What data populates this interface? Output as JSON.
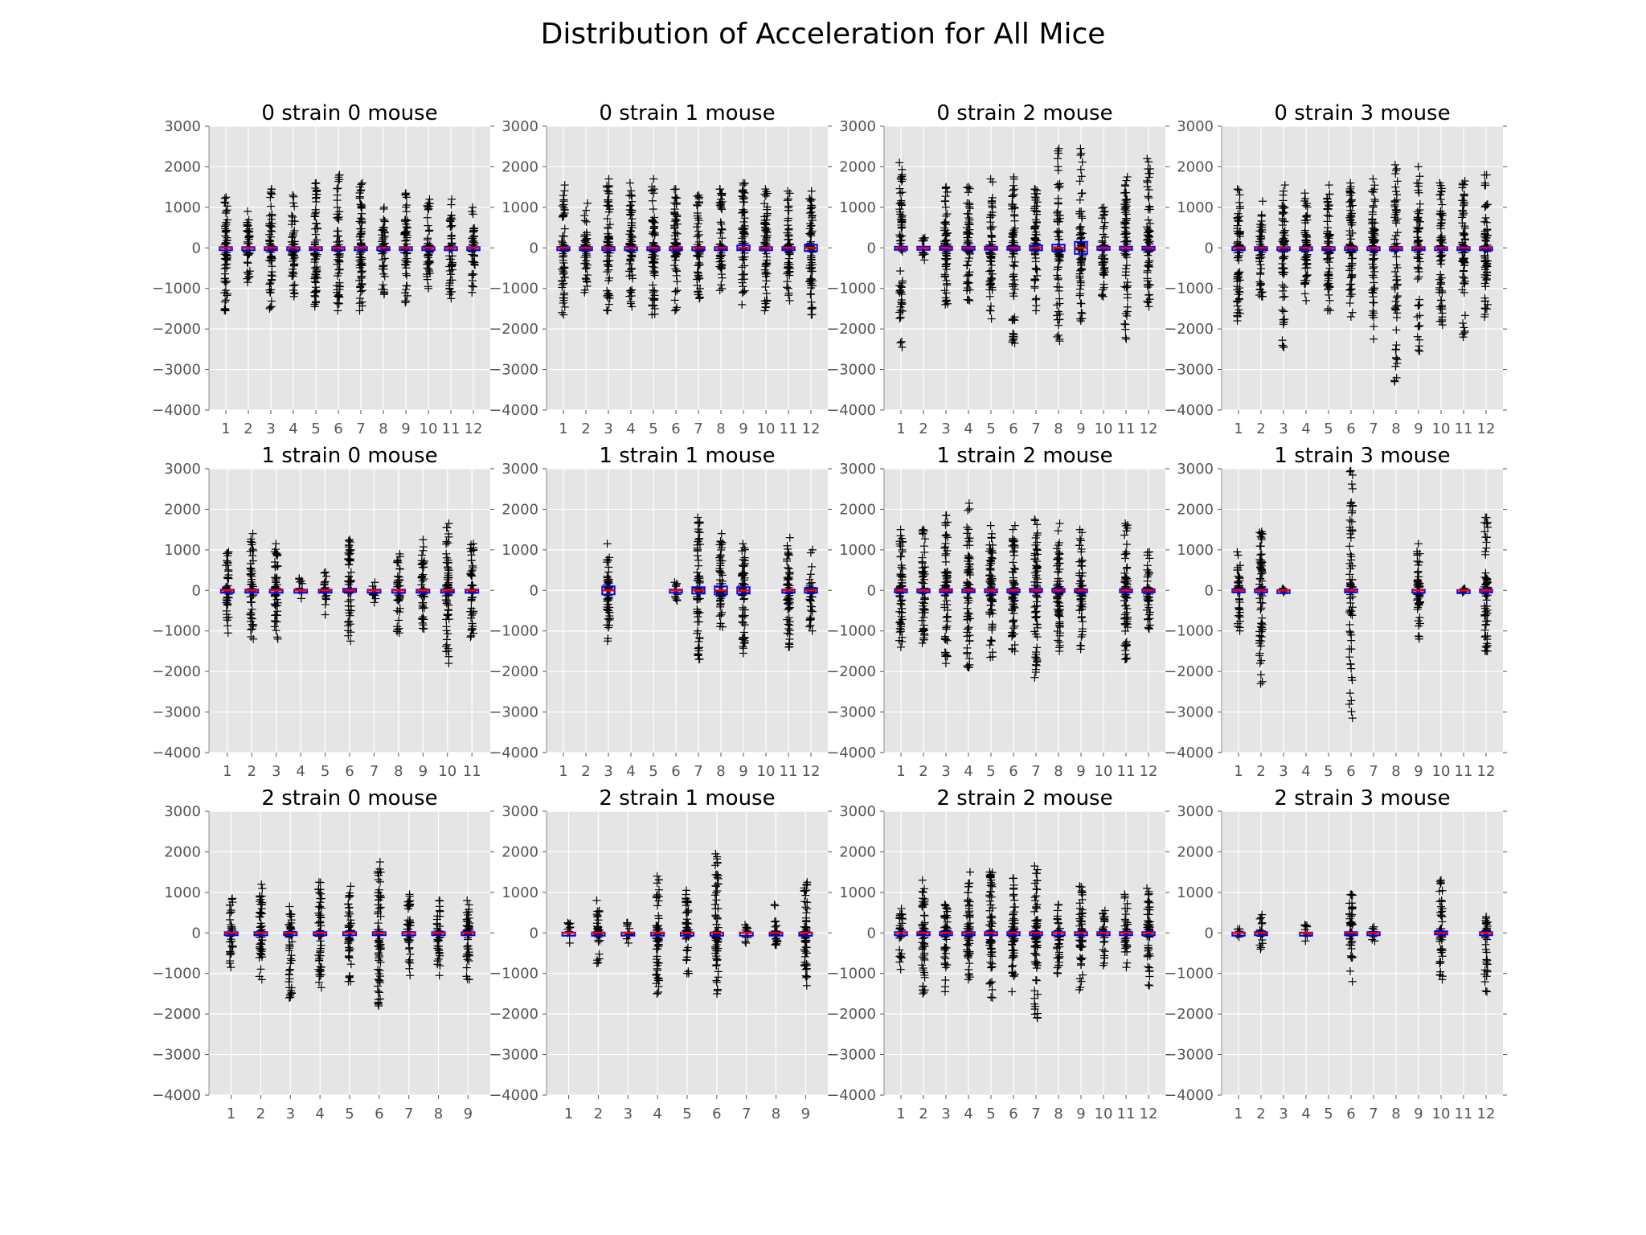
{
  "title": "Distribution of Acceleration for All Mice",
  "colors": {
    "panel_bg": "#e5e5e5",
    "grid": "#ffffff",
    "box": "#0000ff",
    "median": "#ff0000",
    "flier": "#000000"
  },
  "chart_data": [
    {
      "type": "box",
      "title": "0 strain 0 mouse",
      "categories": [
        "1",
        "2",
        "3",
        "4",
        "5",
        "6",
        "7",
        "8",
        "9",
        "10",
        "11",
        "12"
      ],
      "ylim": [
        -4000,
        3000
      ],
      "yticks": [
        3000,
        2000,
        1000,
        0,
        -1000,
        -2000,
        -3000,
        -4000
      ],
      "whisker_low": [
        -1550,
        -850,
        -1500,
        -1200,
        -1450,
        -1550,
        -1550,
        -1150,
        -1350,
        -1000,
        -1250,
        -1100
      ],
      "whisker_high": [
        1250,
        900,
        1450,
        1300,
        1600,
        1800,
        1600,
        1000,
        1350,
        1200,
        1200,
        1000
      ],
      "q1": [
        -20,
        -20,
        -20,
        -20,
        -20,
        -20,
        -20,
        -20,
        -20,
        -20,
        -20,
        -20
      ],
      "median": [
        0,
        0,
        0,
        0,
        0,
        0,
        0,
        0,
        0,
        0,
        0,
        0
      ],
      "q3": [
        20,
        20,
        20,
        20,
        20,
        20,
        20,
        20,
        20,
        20,
        20,
        20
      ],
      "grid": true
    },
    {
      "type": "box",
      "title": "0 strain 1 mouse",
      "categories": [
        "1",
        "2",
        "3",
        "4",
        "5",
        "6",
        "7",
        "8",
        "9",
        "10",
        "11",
        "12"
      ],
      "ylim": [
        -4000,
        3000
      ],
      "yticks": [
        3000,
        2000,
        1000,
        0,
        -1000,
        -2000,
        -3000,
        -4000
      ],
      "whisker_low": [
        -1650,
        -1100,
        -1550,
        -1450,
        -1650,
        -1550,
        -1250,
        -1050,
        -1400,
        -1550,
        -1300,
        -1650
      ],
      "whisker_high": [
        1550,
        1100,
        1700,
        1600,
        1700,
        1450,
        1300,
        1450,
        1600,
        1450,
        1400,
        1400
      ],
      "q1": [
        -20,
        -20,
        -20,
        -20,
        -20,
        -20,
        -20,
        -20,
        -60,
        -20,
        -20,
        -80
      ],
      "median": [
        0,
        0,
        0,
        0,
        0,
        0,
        0,
        0,
        0,
        0,
        0,
        0
      ],
      "q3": [
        20,
        20,
        20,
        20,
        20,
        20,
        20,
        20,
        60,
        20,
        20,
        80
      ],
      "grid": true
    },
    {
      "type": "box",
      "title": "0 strain 2 mouse",
      "categories": [
        "1",
        "2",
        "3",
        "4",
        "5",
        "6",
        "7",
        "8",
        "9",
        "10",
        "11",
        "12"
      ],
      "ylim": [
        -4000,
        3000
      ],
      "yticks": [
        3000,
        2000,
        1000,
        0,
        -1000,
        -2000,
        -3000,
        -4000
      ],
      "whisker_low": [
        -2450,
        -300,
        -1400,
        -1300,
        -1750,
        -2350,
        -1550,
        -2300,
        -1800,
        -1200,
        -2250,
        -1450
      ],
      "whisker_high": [
        2100,
        250,
        1500,
        1500,
        1700,
        1750,
        1450,
        2450,
        2450,
        1000,
        1750,
        2200
      ],
      "q1": [
        -30,
        -30,
        -30,
        -30,
        -30,
        -30,
        -60,
        -80,
        -150,
        -30,
        -30,
        -30
      ],
      "median": [
        0,
        0,
        0,
        0,
        0,
        0,
        0,
        0,
        0,
        0,
        0,
        0
      ],
      "q3": [
        30,
        30,
        30,
        30,
        30,
        30,
        60,
        80,
        150,
        30,
        30,
        30
      ],
      "grid": true
    },
    {
      "type": "box",
      "title": "0 strain 3 mouse",
      "categories": [
        "1",
        "2",
        "3",
        "4",
        "5",
        "6",
        "7",
        "8",
        "9",
        "10",
        "11",
        "12"
      ],
      "ylim": [
        -4000,
        3000
      ],
      "yticks": [
        3000,
        2000,
        1000,
        0,
        -1000,
        -2000,
        -3000,
        -4000
      ],
      "whisker_low": [
        -1800,
        -1200,
        -2450,
        -1300,
        -1550,
        -1700,
        -2250,
        -3300,
        -2550,
        -1900,
        -2200,
        -1700
      ],
      "whisker_high": [
        1450,
        1150,
        1550,
        1350,
        1550,
        1600,
        1700,
        2050,
        2000,
        1600,
        1650,
        1800
      ],
      "q1": [
        -20,
        -20,
        -20,
        -20,
        -20,
        -20,
        -20,
        -20,
        -20,
        -20,
        -20,
        -20
      ],
      "median": [
        0,
        0,
        0,
        0,
        0,
        0,
        0,
        0,
        0,
        0,
        0,
        0
      ],
      "q3": [
        20,
        20,
        20,
        20,
        20,
        20,
        20,
        20,
        20,
        20,
        20,
        20
      ],
      "grid": true
    },
    {
      "type": "box",
      "title": "1 strain 0 mouse",
      "categories": [
        "1",
        "2",
        "3",
        "4",
        "5",
        "6",
        "7",
        "8",
        "9",
        "10",
        "11"
      ],
      "ylim": [
        -4000,
        3000
      ],
      "yticks": [
        3000,
        2000,
        1000,
        0,
        -1000,
        -2000,
        -3000,
        -4000
      ],
      "whisker_low": [
        -1050,
        -1200,
        -1200,
        -200,
        -600,
        -1250,
        -300,
        -1050,
        -950,
        -1800,
        -1150
      ],
      "whisker_high": [
        950,
        1400,
        1150,
        300,
        450,
        1250,
        200,
        900,
        1250,
        1650,
        1150
      ],
      "q1": [
        -20,
        -20,
        -20,
        -20,
        -20,
        -40,
        -20,
        -20,
        -20,
        -20,
        -20
      ],
      "median": [
        0,
        0,
        0,
        0,
        0,
        0,
        0,
        0,
        0,
        0,
        0
      ],
      "q3": [
        20,
        20,
        20,
        20,
        20,
        40,
        20,
        20,
        20,
        20,
        20
      ],
      "grid": true
    },
    {
      "type": "box",
      "title": "1 strain 1 mouse",
      "categories": [
        "1",
        "2",
        "3",
        "4",
        "5",
        "6",
        "7",
        "8",
        "9",
        "10",
        "11",
        "12"
      ],
      "ylim": [
        -4000,
        3000
      ],
      "yticks": [
        3000,
        2000,
        1000,
        0,
        -1000,
        -2000,
        -3000,
        -4000
      ],
      "whisker_low": [
        null,
        null,
        -1250,
        null,
        null,
        -250,
        -1700,
        -900,
        -1550,
        null,
        -1400,
        -1000
      ],
      "whisker_high": [
        null,
        null,
        1150,
        null,
        null,
        200,
        1800,
        1400,
        1150,
        null,
        1300,
        1000
      ],
      "q1": [
        null,
        null,
        -100,
        null,
        null,
        -20,
        -80,
        -100,
        -80,
        null,
        -20,
        -60
      ],
      "median": [
        null,
        null,
        0,
        null,
        null,
        0,
        0,
        0,
        0,
        null,
        0,
        0
      ],
      "q3": [
        null,
        null,
        100,
        null,
        null,
        20,
        80,
        100,
        80,
        null,
        20,
        60
      ],
      "grid": true
    },
    {
      "type": "box",
      "title": "1 strain 2 mouse",
      "categories": [
        "1",
        "2",
        "3",
        "4",
        "5",
        "6",
        "7",
        "8",
        "9",
        "10",
        "11",
        "12"
      ],
      "ylim": [
        -4000,
        3000
      ],
      "yticks": [
        3000,
        2000,
        1000,
        0,
        -1000,
        -2000,
        -3000,
        -4000
      ],
      "whisker_low": [
        -1400,
        -1300,
        -1800,
        -1900,
        -1650,
        -1500,
        -2150,
        -1500,
        -1450,
        null,
        -1700,
        -950
      ],
      "whisker_high": [
        1500,
        1500,
        1850,
        2150,
        1600,
        1600,
        1750,
        1650,
        1500,
        null,
        1650,
        950
      ],
      "q1": [
        -30,
        -30,
        -30,
        -30,
        -30,
        -30,
        -40,
        -40,
        -30,
        null,
        -30,
        -30
      ],
      "median": [
        0,
        0,
        0,
        0,
        0,
        0,
        0,
        0,
        0,
        null,
        0,
        0
      ],
      "q3": [
        30,
        30,
        30,
        30,
        30,
        30,
        40,
        40,
        30,
        null,
        30,
        30
      ],
      "grid": true
    },
    {
      "type": "box",
      "title": "1 strain 3 mouse",
      "categories": [
        "1",
        "2",
        "3",
        "4",
        "5",
        "6",
        "7",
        "8",
        "9",
        "10",
        "11",
        "12"
      ],
      "ylim": [
        -4000,
        3000
      ],
      "yticks": [
        3000,
        2000,
        1000,
        0,
        -1000,
        -2000,
        -3000,
        -4000
      ],
      "whisker_low": [
        -1000,
        -2300,
        -50,
        null,
        null,
        -3150,
        null,
        null,
        -1200,
        null,
        -50,
        -1500
      ],
      "whisker_high": [
        950,
        1450,
        50,
        null,
        null,
        2950,
        null,
        null,
        1150,
        null,
        50,
        1800
      ],
      "q1": [
        -30,
        -30,
        -10,
        null,
        null,
        -30,
        null,
        null,
        -20,
        null,
        -10,
        -30
      ],
      "median": [
        0,
        0,
        0,
        null,
        null,
        0,
        null,
        null,
        0,
        null,
        0,
        0
      ],
      "q3": [
        30,
        30,
        10,
        null,
        null,
        30,
        null,
        null,
        20,
        null,
        10,
        30
      ],
      "grid": true
    },
    {
      "type": "box",
      "title": "2 strain 0 mouse",
      "categories": [
        "1",
        "2",
        "3",
        "4",
        "5",
        "6",
        "7",
        "8",
        "9"
      ],
      "ylim": [
        -4000,
        3000
      ],
      "yticks": [
        3000,
        2000,
        1000,
        0,
        -1000,
        -2000,
        -3000,
        -4000
      ],
      "whisker_low": [
        -850,
        -1150,
        -1600,
        -1350,
        -1200,
        -1800,
        -1050,
        -1050,
        -1150
      ],
      "whisker_high": [
        850,
        1200,
        650,
        1250,
        1150,
        1750,
        950,
        800,
        800
      ],
      "q1": [
        -20,
        -20,
        -20,
        -20,
        -20,
        -20,
        -20,
        -20,
        -20
      ],
      "median": [
        0,
        0,
        0,
        0,
        0,
        0,
        0,
        0,
        0
      ],
      "q3": [
        20,
        20,
        20,
        20,
        20,
        20,
        20,
        20,
        20
      ],
      "grid": true
    },
    {
      "type": "box",
      "title": "2 strain 1 mouse",
      "categories": [
        "1",
        "2",
        "3",
        "4",
        "5",
        "6",
        "7",
        "8",
        "9"
      ],
      "ylim": [
        -4000,
        3000
      ],
      "yticks": [
        3000,
        2000,
        1000,
        0,
        -1000,
        -2000,
        -3000,
        -4000
      ],
      "whisker_low": [
        -250,
        -750,
        -250,
        -1500,
        -1000,
        -1500,
        -250,
        -300,
        -1300
      ],
      "whisker_high": [
        250,
        800,
        250,
        1400,
        1050,
        1950,
        200,
        700,
        1250
      ],
      "q1": [
        -10,
        -10,
        -10,
        -10,
        -10,
        -10,
        -10,
        -10,
        -10
      ],
      "median": [
        0,
        0,
        0,
        0,
        0,
        0,
        0,
        0,
        0
      ],
      "q3": [
        10,
        10,
        10,
        10,
        10,
        10,
        10,
        10,
        10
      ],
      "grid": true
    },
    {
      "type": "box",
      "title": "2 strain 2 mouse",
      "categories": [
        "1",
        "2",
        "3",
        "4",
        "5",
        "6",
        "7",
        "8",
        "9",
        "10",
        "11",
        "12"
      ],
      "ylim": [
        -4000,
        3000
      ],
      "yticks": [
        3000,
        2000,
        1000,
        0,
        -1000,
        -2000,
        -3000,
        -4000
      ],
      "whisker_low": [
        -900,
        -1500,
        -1450,
        -1150,
        -1600,
        -1450,
        -2100,
        -1000,
        -1400,
        -800,
        -850,
        -1300
      ],
      "whisker_high": [
        600,
        1300,
        700,
        1500,
        1500,
        1350,
        1650,
        700,
        1150,
        550,
        950,
        1100
      ],
      "q1": [
        -20,
        -20,
        -20,
        -20,
        -20,
        -20,
        -20,
        -20,
        -20,
        -20,
        -20,
        -20
      ],
      "median": [
        0,
        0,
        0,
        0,
        0,
        0,
        0,
        0,
        0,
        0,
        0,
        0
      ],
      "q3": [
        20,
        20,
        20,
        20,
        20,
        20,
        20,
        20,
        20,
        20,
        20,
        20
      ],
      "grid": true
    },
    {
      "type": "box",
      "title": "2 strain 3 mouse",
      "categories": [
        "1",
        "2",
        "3",
        "4",
        "5",
        "6",
        "7",
        "8",
        "9",
        "10",
        "11",
        "12"
      ],
      "ylim": [
        -4000,
        3000
      ],
      "yticks": [
        3000,
        2000,
        1000,
        0,
        -1000,
        -2000,
        -3000,
        -4000
      ],
      "whisker_low": [
        -100,
        -400,
        null,
        -200,
        null,
        -1200,
        -200,
        null,
        null,
        -1150,
        null,
        -1450
      ],
      "whisker_high": [
        100,
        450,
        null,
        200,
        null,
        950,
        150,
        null,
        null,
        1300,
        null,
        400
      ],
      "q1": [
        -10,
        -20,
        null,
        -10,
        null,
        -20,
        -20,
        null,
        null,
        -40,
        null,
        -20
      ],
      "median": [
        0,
        0,
        null,
        0,
        null,
        0,
        0,
        null,
        null,
        0,
        null,
        0
      ],
      "q3": [
        10,
        20,
        null,
        10,
        null,
        20,
        20,
        null,
        null,
        40,
        null,
        20
      ],
      "grid": true
    }
  ]
}
